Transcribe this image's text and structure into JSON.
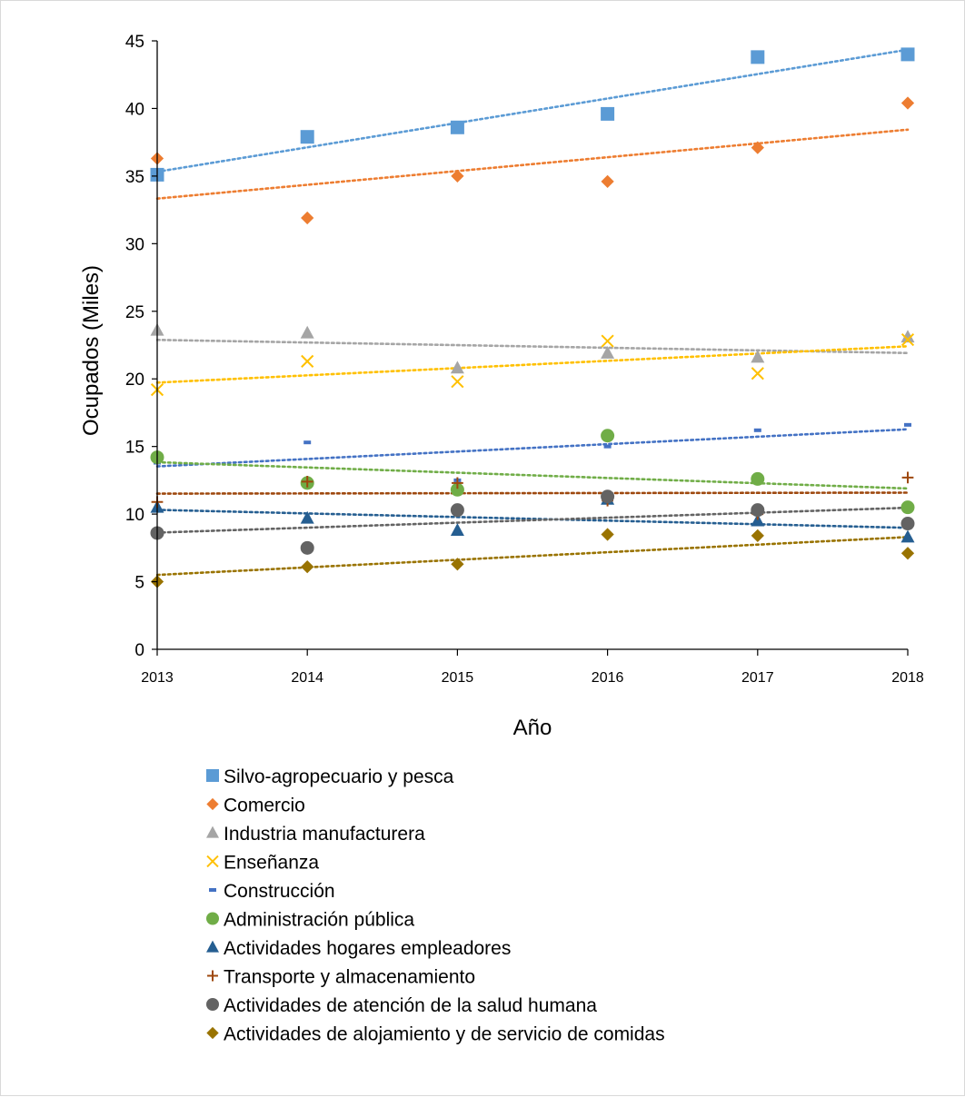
{
  "chart_data": {
    "type": "scatter",
    "title": "",
    "xlabel": "Año",
    "ylabel": "Ocupados (Miles)",
    "x": [
      2013,
      2014,
      2015,
      2016,
      2017,
      2018
    ],
    "xlim": [
      2013,
      2018
    ],
    "ylim": [
      0,
      45
    ],
    "yticks": [
      0,
      5,
      10,
      15,
      20,
      25,
      30,
      35,
      40,
      45
    ],
    "grid": false,
    "legend_position": "bottom",
    "trendlines": "linear, dotted",
    "series": [
      {
        "name": "Silvo-agropecuario y pesca",
        "marker": "square",
        "color": "#5b9bd5",
        "values": [
          35.1,
          37.9,
          38.6,
          39.6,
          43.8,
          44.0
        ]
      },
      {
        "name": "Comercio",
        "marker": "diamond",
        "color": "#ed7d31",
        "values": [
          36.3,
          31.9,
          35.0,
          34.6,
          37.1,
          40.4
        ]
      },
      {
        "name": "Industria manufacturera",
        "marker": "triangle",
        "color": "#a5a5a5",
        "values": [
          23.6,
          23.4,
          20.8,
          21.9,
          21.6,
          23.1
        ]
      },
      {
        "name": "Enseñanza",
        "marker": "x",
        "color": "#ffc000",
        "values": [
          19.2,
          21.3,
          19.8,
          22.8,
          20.4,
          22.9
        ]
      },
      {
        "name": "Construcción",
        "marker": "dash",
        "color": "#4472c4",
        "values": [
          13.8,
          15.3,
          12.5,
          15.0,
          16.2,
          16.6
        ]
      },
      {
        "name": "Administración pública",
        "marker": "circle",
        "color": "#70ad47",
        "values": [
          14.2,
          12.3,
          11.8,
          15.8,
          12.6,
          10.5
        ]
      },
      {
        "name": "Actividades hogares empleadores",
        "marker": "triangle",
        "color": "#255e91",
        "values": [
          10.5,
          9.7,
          8.8,
          11.1,
          9.5,
          8.3
        ]
      },
      {
        "name": "Transporte y almacenamiento",
        "marker": "plus",
        "color": "#9e480e",
        "values": [
          10.9,
          12.4,
          12.3,
          11.0,
          10.0,
          12.7
        ]
      },
      {
        "name": "Actividades de atención de la salud humana",
        "marker": "circle",
        "color": "#636363",
        "values": [
          8.6,
          7.5,
          10.3,
          11.3,
          10.3,
          9.3
        ]
      },
      {
        "name": "Actividades de alojamiento y de servicio de comidas",
        "marker": "diamond",
        "color": "#997300",
        "values": [
          5.0,
          6.1,
          6.3,
          8.5,
          8.4,
          7.1
        ]
      }
    ]
  }
}
